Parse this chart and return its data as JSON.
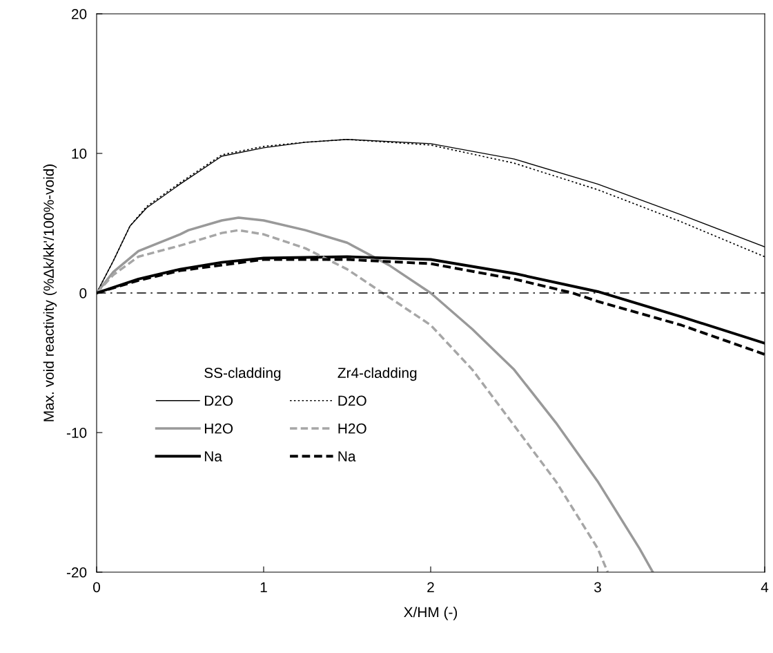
{
  "chart_data": {
    "type": "line",
    "xlabel": "X/HM (-)",
    "ylabel": "Max. void reactivity (%Δk/kk'/100%-void)",
    "xlim": [
      0,
      4
    ],
    "ylim": [
      -20,
      20
    ],
    "xticks": [
      0,
      1,
      2,
      3,
      4
    ],
    "yticks": [
      -20,
      -10,
      0,
      10,
      20
    ],
    "grid": false,
    "legend": "bottom left",
    "marker": "none",
    "annotations": [
      "SS-cladding",
      "Zr4-cladding"
    ],
    "ref_lines": [
      {
        "axis": "y",
        "value": 0,
        "color": "#000000",
        "line_style": "dashdot"
      }
    ],
    "series": [
      {
        "name": "D2O",
        "color": "#000000",
        "line_style": "solid",
        "x": [
          0,
          0.1,
          0.2,
          0.3,
          0.5,
          0.75,
          1.0,
          1.25,
          1.5,
          2.0,
          2.5,
          3.0,
          3.5,
          4.0
        ],
        "values": [
          0,
          2.3,
          4.8,
          6.1,
          7.8,
          9.8,
          10.4,
          10.8,
          11.0,
          10.7,
          9.6,
          7.8,
          5.6,
          3.3
        ]
      },
      {
        "name": "H2O",
        "color": "#999999",
        "line_style": "solid",
        "x": [
          0,
          0.1,
          0.25,
          0.5,
          0.55,
          0.75,
          0.85,
          1.0,
          1.25,
          1.5,
          1.75,
          2.0,
          2.25,
          2.5,
          2.75,
          3.0,
          3.25,
          3.33
        ],
        "values": [
          0,
          1.5,
          3.0,
          4.2,
          4.5,
          5.2,
          5.4,
          5.2,
          4.5,
          3.6,
          2.0,
          0,
          -2.6,
          -5.5,
          -9.3,
          -13.5,
          -18.3,
          -20
        ]
      },
      {
        "name": "Na",
        "color": "#000000",
        "line_style": "solid",
        "x": [
          0,
          0.25,
          0.5,
          0.75,
          1.0,
          1.5,
          2.0,
          2.5,
          3.0,
          3.5,
          4.0
        ],
        "values": [
          0,
          1.0,
          1.7,
          2.2,
          2.5,
          2.6,
          2.4,
          1.4,
          0.1,
          -1.7,
          -3.6
        ]
      },
      {
        "name": "D2O",
        "color": "#000000",
        "line_style": "dotted",
        "x": [
          0,
          0.1,
          0.2,
          0.3,
          0.5,
          0.75,
          1.0,
          1.25,
          1.5,
          2.0,
          2.5,
          3.0,
          3.5,
          4.0
        ],
        "values": [
          0,
          2.3,
          4.8,
          6.2,
          7.9,
          9.9,
          10.5,
          10.8,
          11.0,
          10.6,
          9.3,
          7.4,
          5.1,
          2.6
        ]
      },
      {
        "name": "H2O",
        "color": "#a6a6a6",
        "line_style": "dashed",
        "x": [
          0,
          0.1,
          0.25,
          0.5,
          0.75,
          0.85,
          1.0,
          1.25,
          1.5,
          1.75,
          2.0,
          2.25,
          2.5,
          2.75,
          3.0,
          3.06
        ],
        "values": [
          0,
          1.3,
          2.6,
          3.4,
          4.3,
          4.5,
          4.2,
          3.2,
          1.7,
          -0.3,
          -2.3,
          -5.5,
          -9.5,
          -13.5,
          -18.3,
          -20
        ]
      },
      {
        "name": "Na",
        "color": "#000000",
        "line_style": "dashed",
        "x": [
          0,
          0.25,
          0.5,
          1.0,
          1.5,
          2.0,
          2.5,
          2.85,
          3.0,
          3.5,
          4.0
        ],
        "values": [
          0,
          0.9,
          1.6,
          2.4,
          2.4,
          2.1,
          1.0,
          0,
          -0.6,
          -2.3,
          -4.4
        ]
      }
    ]
  }
}
